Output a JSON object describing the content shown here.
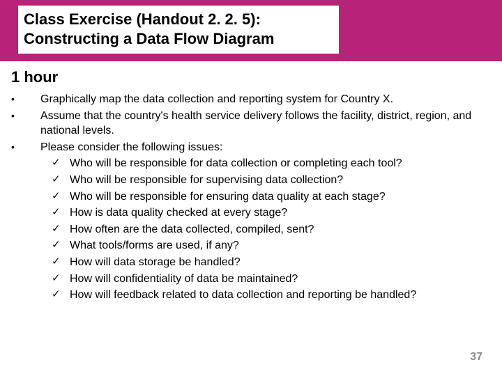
{
  "colors": {
    "header_bg": "#b8237a",
    "page_bg": "#ffffff",
    "text": "#000000",
    "page_num": "#8b8b8b"
  },
  "title": {
    "line1": "Class Exercise (Handout 2. 2. 5):",
    "line2": "Constructing a Data Flow Diagram"
  },
  "duration": "1 hour",
  "bullets": [
    "Graphically map the data collection and reporting system for Country X.",
    "Assume that the country's health service delivery follows the facility, district, region, and national levels.",
    "Please consider the following issues:"
  ],
  "sub_bullets": [
    "Who will be responsible for data collection or completing each tool?",
    "Who will be responsible for supervising data collection?",
    "Who will be responsible for ensuring data quality at each stage?",
    "How is data quality checked at every stage?",
    "How often are the data collected, compiled, sent?",
    "What tools/forms are used, if any?",
    "How will data storage be handled?",
    "How will confidentiality of data be maintained?",
    "How will feedback related to data collection and reporting be handled?"
  ],
  "page_number": "37"
}
